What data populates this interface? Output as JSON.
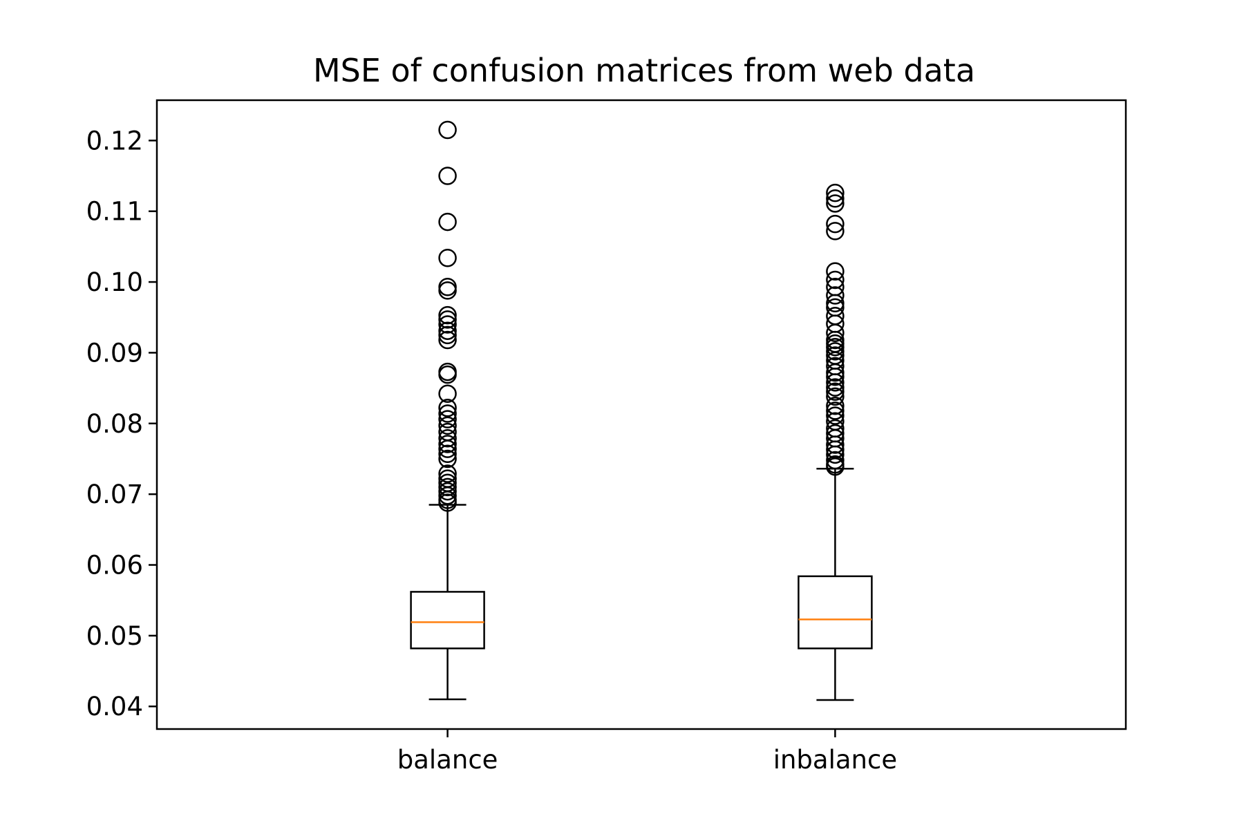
{
  "chart_data": {
    "type": "box",
    "title": "MSE of confusion matrices from web data",
    "xlabel": "",
    "ylabel": "",
    "categories": [
      "balance",
      "inbalance"
    ],
    "ylim": [
      0.0368,
      0.1257
    ],
    "yticks": [
      0.04,
      0.05,
      0.06,
      0.07,
      0.08,
      0.09,
      0.1,
      0.11,
      0.12
    ],
    "ytick_labels": [
      "0.04",
      "0.05",
      "0.06",
      "0.07",
      "0.08",
      "0.09",
      "0.10",
      "0.11",
      "0.12"
    ],
    "grid": false,
    "series": [
      {
        "category": "balance",
        "whisker_low": 0.041,
        "q1": 0.0482,
        "median": 0.0519,
        "q3": 0.0562,
        "whisker_high": 0.0685,
        "outliers": [
          0.1215,
          0.115,
          0.1085,
          0.1034,
          0.0993,
          0.0988,
          0.0953,
          0.0947,
          0.094,
          0.0931,
          0.0925,
          0.0918,
          0.0873,
          0.0869,
          0.0842,
          0.0822,
          0.0814,
          0.0806,
          0.0797,
          0.0788,
          0.0779,
          0.0771,
          0.0764,
          0.0757,
          0.075,
          0.0729,
          0.0722,
          0.0716,
          0.071,
          0.0704,
          0.0698,
          0.0692,
          0.0688
        ]
      },
      {
        "category": "inbalance",
        "whisker_low": 0.0409,
        "q1": 0.0482,
        "median": 0.0523,
        "q3": 0.0584,
        "whisker_high": 0.0736,
        "outliers": [
          0.1126,
          0.1118,
          0.1111,
          0.1082,
          0.1072,
          0.1015,
          0.1003,
          0.0993,
          0.0981,
          0.097,
          0.0964,
          0.0952,
          0.0941,
          0.0928,
          0.0918,
          0.0913,
          0.0908,
          0.0902,
          0.0896,
          0.0889,
          0.0881,
          0.0872,
          0.0866,
          0.0858,
          0.0851,
          0.0845,
          0.0838,
          0.0825,
          0.0818,
          0.0811,
          0.0803,
          0.0793,
          0.0786,
          0.0779,
          0.077,
          0.0763,
          0.0756,
          0.0748,
          0.0742,
          0.0739
        ]
      }
    ],
    "colors": {
      "box": "#000000",
      "median": "#ff7f0e",
      "outlier_edge": "#000000",
      "axes": "#000000",
      "background": "#ffffff"
    }
  }
}
